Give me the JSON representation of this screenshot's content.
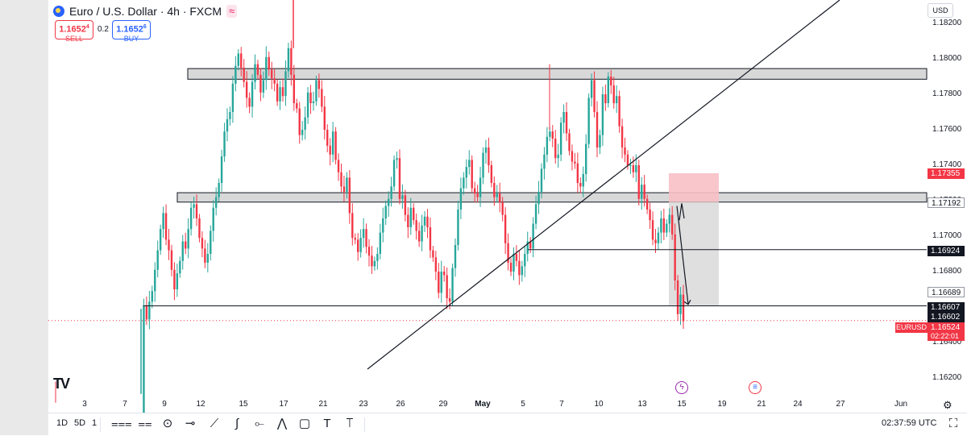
{
  "header": {
    "title": "Euro / U.S. Dollar · 4h · FXCM",
    "sell_price": "1.1652",
    "sell_sup": "4",
    "sell_label": "SELL",
    "spread": "0.2",
    "buy_price": "1.1652",
    "buy_sup": "6",
    "buy_label": "BUY"
  },
  "currency": "USD",
  "price_labels": {
    "zone_top": "1.17355",
    "upper_line": "1.17192",
    "mid_line": "1.16924",
    "zone_bottom": "1.16689",
    "support_line": "1.16607",
    "low_level": "1.16602",
    "last_price": "1.16524",
    "countdown": "02:22:01",
    "symbol": "EURUSD"
  },
  "bottom_bar": {
    "tf_1d": "1D",
    "tf_5d": "5D",
    "tf_1": "1",
    "clock": "02:37:59 UTC"
  },
  "colors": {
    "up": "#26a69a",
    "down": "#f23645",
    "zone": "#d8d8d8",
    "risk_zone": "#f7c0c5",
    "target_zone": "#d9d9d9"
  },
  "chart_data": {
    "type": "candlestick",
    "symbol": "EURUSD",
    "timeframe": "4h",
    "x_tick_labels": [
      "3",
      "7",
      "9",
      "12",
      "15",
      "17",
      "21",
      "23",
      "26",
      "29",
      "May",
      "5",
      "7",
      "10",
      "13",
      "15",
      "19",
      "21",
      "24",
      "27",
      "Jun"
    ],
    "y_tick_labels": [
      "1.18200",
      "1.18000",
      "1.17800",
      "1.17600",
      "1.17400",
      "1.17200",
      "1.17000",
      "1.16800",
      "1.16600",
      "1.16400",
      "1.16200"
    ],
    "ylim": [
      1.1612,
      1.1832
    ],
    "last_price": 1.16524,
    "zones": [
      {
        "name": "resistance",
        "low": 1.17885,
        "high": 1.17945
      },
      {
        "name": "support-resistance",
        "low": 1.17192,
        "high": 1.17245
      }
    ],
    "levels": [
      1.16924,
      1.16607
    ],
    "trend_line": {
      "from": [
        "23",
        1.1625
      ],
      "to": [
        "Jun",
        1.1837
      ]
    },
    "projection": {
      "entry_zone_top": 1.17355,
      "entry": 1.17192,
      "target": 1.16607
    },
    "closes": [
      1.1597,
      1.1661,
      1.1653,
      1.1663,
      1.1669,
      1.1681,
      1.1692,
      1.1704,
      1.1713,
      1.1698,
      1.1692,
      1.1681,
      1.167,
      1.1679,
      1.1686,
      1.1697,
      1.1693,
      1.1704,
      1.1716,
      1.1718,
      1.171,
      1.1699,
      1.1693,
      1.1685,
      1.169,
      1.1703,
      1.1716,
      1.1722,
      1.173,
      1.1745,
      1.1759,
      1.1766,
      1.177,
      1.1786,
      1.1796,
      1.1803,
      1.1795,
      1.1787,
      1.1778,
      1.1773,
      1.1787,
      1.1797,
      1.1791,
      1.1781,
      1.1788,
      1.1801,
      1.1794,
      1.1789,
      1.1786,
      1.1776,
      1.1784,
      1.1779,
      1.1793,
      1.1806,
      1.1791,
      1.1775,
      1.1772,
      1.1757,
      1.176,
      1.1767,
      1.1781,
      1.1775,
      1.1776,
      1.1788,
      1.1783,
      1.1773,
      1.176,
      1.1751,
      1.1746,
      1.1759,
      1.1743,
      1.1736,
      1.1728,
      1.1725,
      1.1733,
      1.1713,
      1.1699,
      1.1698,
      1.1691,
      1.1699,
      1.1704,
      1.1694,
      1.1689,
      1.1683,
      1.1686,
      1.169,
      1.1702,
      1.171,
      1.1717,
      1.1721,
      1.1728,
      1.1743,
      1.1744,
      1.1721,
      1.1723,
      1.1712,
      1.1705,
      1.1716,
      1.1709,
      1.1703,
      1.1697,
      1.1706,
      1.1711,
      1.1705,
      1.1692,
      1.1688,
      1.168,
      1.1668,
      1.168,
      1.1678,
      1.1665,
      1.1663,
      1.1682,
      1.1695,
      1.1715,
      1.1727,
      1.1733,
      1.1739,
      1.1743,
      1.1727,
      1.1724,
      1.1722,
      1.1733,
      1.1747,
      1.175,
      1.174,
      1.173,
      1.1722,
      1.1724,
      1.1719,
      1.1712,
      1.1696,
      1.1685,
      1.168,
      1.169,
      1.1686,
      1.1678,
      1.1683,
      1.169,
      1.1697,
      1.1693,
      1.1707,
      1.1718,
      1.1725,
      1.1738,
      1.1746,
      1.1756,
      1.1759,
      1.1755,
      1.1744,
      1.1746,
      1.1764,
      1.177,
      1.1758,
      1.1748,
      1.1742,
      1.1741,
      1.173,
      1.1728,
      1.1735,
      1.1752,
      1.1778,
      1.1788,
      1.177,
      1.175,
      1.1757,
      1.178,
      1.1775,
      1.179,
      1.1785,
      1.1775,
      1.1779,
      1.1762,
      1.175,
      1.1746,
      1.174,
      1.174,
      1.1736,
      1.174,
      1.1721,
      1.1729,
      1.1721,
      1.1715,
      1.1709,
      1.1698,
      1.1696,
      1.1702,
      1.171,
      1.1702,
      1.1707,
      1.1712,
      1.1701,
      1.1675,
      1.1656,
      1.1667,
      1.1652
    ]
  }
}
